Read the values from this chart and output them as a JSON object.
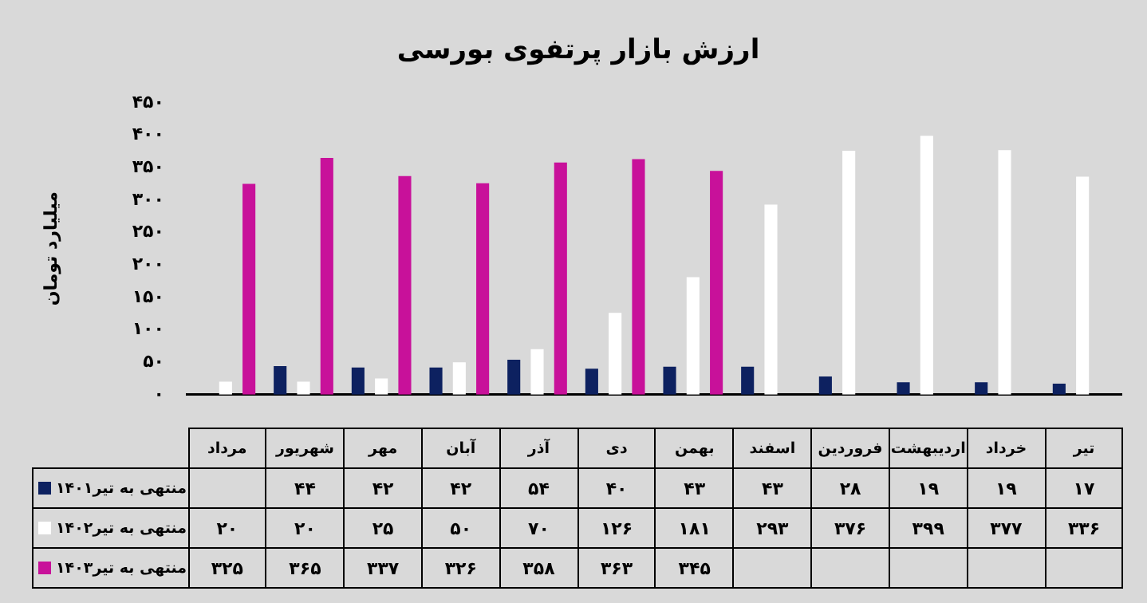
{
  "chart_data": {
    "type": "bar",
    "title": "ارزش بازار پرتفوی بورسی",
    "ylabel": "میلیارد تومان",
    "categories": [
      "مرداد",
      "شهریور",
      "مهر",
      "آبان",
      "آذر",
      "دی",
      "بهمن",
      "اسفند",
      "فروردین",
      "اردیبهشت",
      "خرداد",
      "تیر"
    ],
    "series": [
      {
        "name": "منتهی به تیر۱۴۰۱",
        "color": "#0d2160",
        "values": [
          null,
          44,
          42,
          42,
          54,
          40,
          43,
          43,
          28,
          19,
          19,
          17
        ],
        "value_labels": [
          null,
          "۴۴",
          "۴۲",
          "۴۲",
          "۵۴",
          "۴۰",
          "۴۳",
          "۴۳",
          "۲۸",
          "۱۹",
          "۱۹",
          "۱۷"
        ]
      },
      {
        "name": "منتهی به تیر۱۴۰۲",
        "color": "#ffffff",
        "values": [
          20,
          20,
          25,
          50,
          70,
          126,
          181,
          293,
          376,
          399,
          377,
          336
        ],
        "value_labels": [
          "۲۰",
          "۲۰",
          "۲۵",
          "۵۰",
          "۷۰",
          "۱۲۶",
          "۱۸۱",
          "۲۹۳",
          "۳۷۶",
          "۳۹۹",
          "۳۷۷",
          "۳۳۶"
        ]
      },
      {
        "name": "منتهی به تیر۱۴۰۳",
        "color": "#c8119a",
        "values": [
          325,
          365,
          337,
          326,
          358,
          363,
          345,
          null,
          null,
          null,
          null,
          null
        ],
        "value_labels": [
          "۳۲۵",
          "۳۶۵",
          "۳۳۷",
          "۳۲۶",
          "۳۵۸",
          "۳۶۳",
          "۳۴۵",
          null,
          null,
          null,
          null,
          null
        ]
      }
    ],
    "ylim": [
      0,
      450
    ],
    "yticks": [
      {
        "value": 0,
        "label": "۰"
      },
      {
        "value": 50,
        "label": "۵۰"
      },
      {
        "value": 100,
        "label": "۱۰۰"
      },
      {
        "value": 150,
        "label": "۱۵۰"
      },
      {
        "value": 200,
        "label": "۲۰۰"
      },
      {
        "value": 250,
        "label": "۲۵۰"
      },
      {
        "value": 300,
        "label": "۳۰۰"
      },
      {
        "value": 350,
        "label": "۳۵۰"
      },
      {
        "value": 400,
        "label": "۴۰۰"
      },
      {
        "value": 450,
        "label": "۴۵۰"
      }
    ],
    "grid": false,
    "legend": "bottom left"
  }
}
